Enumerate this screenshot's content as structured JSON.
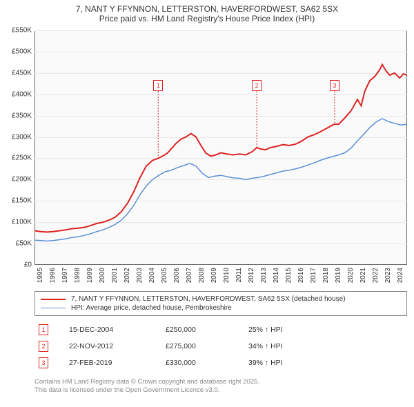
{
  "title": {
    "line1": "7, NANT Y FFYNNON, LETTERSTON, HAVERFORDWEST, SA62 5SX",
    "line2": "Price paid vs. HM Land Registry's House Price Index (HPI)",
    "fontsize": 12,
    "color": "#333333"
  },
  "chart": {
    "type": "line",
    "background_color": "#fafafa",
    "border_color": "#666666",
    "grid_color": "#e8e8e8",
    "ylim": [
      0,
      550000
    ],
    "ytick_step": 50000,
    "ytick_labels": [
      "£0",
      "£50K",
      "£100K",
      "£150K",
      "£200K",
      "£250K",
      "£300K",
      "£350K",
      "£400K",
      "£450K",
      "£500K",
      "£550K"
    ],
    "xlim": [
      1995,
      2025
    ],
    "xticks": [
      1995,
      1996,
      1997,
      1998,
      1999,
      2000,
      2001,
      2002,
      2003,
      2004,
      2005,
      2006,
      2007,
      2008,
      2009,
      2010,
      2011,
      2012,
      2013,
      2014,
      2015,
      2016,
      2017,
      2018,
      2019,
      2020,
      2021,
      2022,
      2023,
      2024
    ],
    "tick_fontsize": 10,
    "tick_color": "#333333",
    "series": [
      {
        "id": "property",
        "label": "7, NANT Y FFYNNON, LETTERSTON, HAVERFORDWEST, SA62 5SX (detached house)",
        "color": "#dd2222",
        "line_width": 2,
        "points": [
          [
            1995.0,
            80000
          ],
          [
            1995.5,
            78000
          ],
          [
            1996.0,
            77000
          ],
          [
            1996.5,
            78000
          ],
          [
            1997.0,
            80000
          ],
          [
            1997.5,
            82000
          ],
          [
            1998.0,
            85000
          ],
          [
            1998.5,
            86000
          ],
          [
            1999.0,
            88000
          ],
          [
            1999.5,
            92000
          ],
          [
            2000.0,
            97000
          ],
          [
            2000.5,
            100000
          ],
          [
            2001.0,
            105000
          ],
          [
            2001.5,
            112000
          ],
          [
            2002.0,
            125000
          ],
          [
            2002.5,
            145000
          ],
          [
            2003.0,
            172000
          ],
          [
            2003.5,
            205000
          ],
          [
            2004.0,
            232000
          ],
          [
            2004.5,
            245000
          ],
          [
            2004.96,
            250000
          ],
          [
            2005.3,
            255000
          ],
          [
            2005.7,
            262000
          ],
          [
            2006.0,
            272000
          ],
          [
            2006.4,
            285000
          ],
          [
            2006.8,
            295000
          ],
          [
            2007.2,
            300000
          ],
          [
            2007.6,
            308000
          ],
          [
            2008.0,
            300000
          ],
          [
            2008.4,
            280000
          ],
          [
            2008.8,
            262000
          ],
          [
            2009.2,
            255000
          ],
          [
            2009.6,
            258000
          ],
          [
            2010.0,
            263000
          ],
          [
            2010.5,
            260000
          ],
          [
            2011.0,
            258000
          ],
          [
            2011.5,
            260000
          ],
          [
            2012.0,
            258000
          ],
          [
            2012.5,
            265000
          ],
          [
            2012.9,
            275000
          ],
          [
            2013.2,
            272000
          ],
          [
            2013.6,
            270000
          ],
          [
            2014.0,
            275000
          ],
          [
            2014.5,
            278000
          ],
          [
            2015.0,
            282000
          ],
          [
            2015.5,
            280000
          ],
          [
            2016.0,
            283000
          ],
          [
            2016.5,
            290000
          ],
          [
            2017.0,
            300000
          ],
          [
            2017.5,
            305000
          ],
          [
            2018.0,
            312000
          ],
          [
            2018.5,
            320000
          ],
          [
            2019.0,
            328000
          ],
          [
            2019.16,
            330000
          ],
          [
            2019.5,
            330000
          ],
          [
            2020.0,
            345000
          ],
          [
            2020.5,
            362000
          ],
          [
            2021.0,
            388000
          ],
          [
            2021.3,
            373000
          ],
          [
            2021.6,
            408000
          ],
          [
            2022.0,
            432000
          ],
          [
            2022.4,
            442000
          ],
          [
            2022.8,
            458000
          ],
          [
            2023.0,
            470000
          ],
          [
            2023.3,
            455000
          ],
          [
            2023.6,
            445000
          ],
          [
            2024.0,
            450000
          ],
          [
            2024.4,
            438000
          ],
          [
            2024.7,
            448000
          ],
          [
            2025.0,
            445000
          ]
        ]
      },
      {
        "id": "hpi",
        "label": "HPI: Average price, detached house, Pembrokeshire",
        "color": "#5b8fd6",
        "line_width": 1.5,
        "points": [
          [
            1995.0,
            58000
          ],
          [
            1995.5,
            57000
          ],
          [
            1996.0,
            56000
          ],
          [
            1996.5,
            57000
          ],
          [
            1997.0,
            59000
          ],
          [
            1997.5,
            61000
          ],
          [
            1998.0,
            64000
          ],
          [
            1998.5,
            66000
          ],
          [
            1999.0,
            69000
          ],
          [
            1999.5,
            73000
          ],
          [
            2000.0,
            78000
          ],
          [
            2000.5,
            82000
          ],
          [
            2001.0,
            88000
          ],
          [
            2001.5,
            95000
          ],
          [
            2002.0,
            105000
          ],
          [
            2002.5,
            120000
          ],
          [
            2003.0,
            140000
          ],
          [
            2003.5,
            165000
          ],
          [
            2004.0,
            185000
          ],
          [
            2004.5,
            200000
          ],
          [
            2005.0,
            210000
          ],
          [
            2005.5,
            218000
          ],
          [
            2006.0,
            222000
          ],
          [
            2006.5,
            228000
          ],
          [
            2007.0,
            233000
          ],
          [
            2007.5,
            238000
          ],
          [
            2008.0,
            232000
          ],
          [
            2008.5,
            215000
          ],
          [
            2009.0,
            205000
          ],
          [
            2009.5,
            208000
          ],
          [
            2010.0,
            210000
          ],
          [
            2010.5,
            207000
          ],
          [
            2011.0,
            204000
          ],
          [
            2011.5,
            203000
          ],
          [
            2012.0,
            200000
          ],
          [
            2012.5,
            203000
          ],
          [
            2013.0,
            205000
          ],
          [
            2013.5,
            208000
          ],
          [
            2014.0,
            212000
          ],
          [
            2014.5,
            216000
          ],
          [
            2015.0,
            220000
          ],
          [
            2015.5,
            222000
          ],
          [
            2016.0,
            225000
          ],
          [
            2016.5,
            229000
          ],
          [
            2017.0,
            234000
          ],
          [
            2017.5,
            239000
          ],
          [
            2018.0,
            245000
          ],
          [
            2018.5,
            250000
          ],
          [
            2019.0,
            254000
          ],
          [
            2019.5,
            258000
          ],
          [
            2020.0,
            263000
          ],
          [
            2020.5,
            274000
          ],
          [
            2021.0,
            291000
          ],
          [
            2021.5,
            306000
          ],
          [
            2022.0,
            322000
          ],
          [
            2022.5,
            335000
          ],
          [
            2023.0,
            343000
          ],
          [
            2023.5,
            336000
          ],
          [
            2024.0,
            332000
          ],
          [
            2024.5,
            328000
          ],
          [
            2025.0,
            330000
          ]
        ]
      }
    ],
    "markers": [
      {
        "num": "1",
        "x": 2004.96,
        "y_offset": 80,
        "color": "#dd2222"
      },
      {
        "num": "2",
        "x": 2012.9,
        "y_offset": 80,
        "color": "#dd2222"
      },
      {
        "num": "3",
        "x": 2019.16,
        "y_offset": 80,
        "color": "#dd2222"
      }
    ]
  },
  "legend": {
    "border_color": "#888888",
    "fontsize": 10
  },
  "events": [
    {
      "num": "1",
      "date": "15-DEC-2004",
      "price": "£250,000",
      "delta": "25% ↑ HPI"
    },
    {
      "num": "2",
      "date": "22-NOV-2012",
      "price": "£275,000",
      "delta": "34% ↑ HPI"
    },
    {
      "num": "3",
      "date": "27-FEB-2019",
      "price": "£330,000",
      "delta": "39% ↑ HPI"
    }
  ],
  "attribution": {
    "line1": "Contains HM Land Registry data © Crown copyright and database right 2025.",
    "line2": "This data is licensed under the Open Government Licence v3.0.",
    "color": "#888888",
    "fontsize": 9.5
  }
}
